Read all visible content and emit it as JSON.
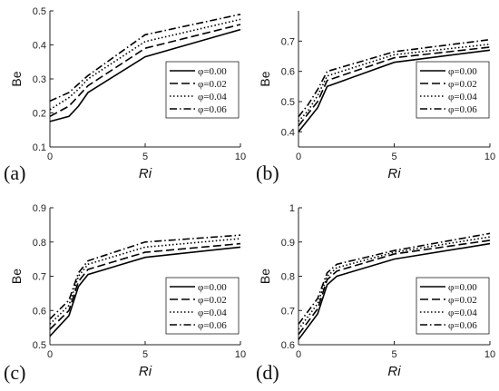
{
  "chart_data": [
    {
      "type": "line",
      "panel": "(a)",
      "xlabel": "Ri",
      "ylabel": "Be",
      "xlim": [
        0,
        10
      ],
      "ylim": [
        0.1,
        0.5
      ],
      "xticks": [
        0,
        5,
        10
      ],
      "yticks": [
        0.1,
        0.2,
        0.3,
        0.4,
        0.5
      ],
      "ytick_labels": [
        "0.1",
        "0.2",
        "0.3",
        "0.4",
        "0.5"
      ],
      "legend_position": "right",
      "series": [
        {
          "name": "φ=0.00",
          "dash": "solid",
          "x": [
            0,
            1,
            1.5,
            2,
            5,
            10
          ],
          "y": [
            0.175,
            0.19,
            0.22,
            0.26,
            0.365,
            0.445
          ]
        },
        {
          "name": "φ=0.02",
          "dash": "dash",
          "x": [
            0,
            1,
            1.5,
            2,
            5,
            10
          ],
          "y": [
            0.19,
            0.22,
            0.25,
            0.28,
            0.39,
            0.46
          ]
        },
        {
          "name": "φ=0.04",
          "dash": "dot",
          "x": [
            0,
            1,
            1.5,
            2,
            5,
            10
          ],
          "y": [
            0.21,
            0.245,
            0.27,
            0.3,
            0.41,
            0.475
          ]
        },
        {
          "name": "φ=0.06",
          "dash": "dashdot",
          "x": [
            0,
            1,
            1.5,
            2,
            5,
            10
          ],
          "y": [
            0.235,
            0.26,
            0.285,
            0.31,
            0.43,
            0.49
          ]
        }
      ]
    },
    {
      "type": "line",
      "panel": "(b)",
      "xlabel": "Ri",
      "ylabel": "Be",
      "xlim": [
        0,
        10
      ],
      "ylim": [
        0.35,
        0.8
      ],
      "xticks": [
        0,
        5,
        10
      ],
      "yticks": [
        0.4,
        0.5,
        0.6,
        0.7
      ],
      "ytick_labels": [
        "0.4",
        "0.5",
        "0.6",
        "0.7"
      ],
      "legend_position": "right",
      "series": [
        {
          "name": "φ=0.00",
          "dash": "solid",
          "x": [
            0,
            0.5,
            1,
            1.5,
            5,
            10
          ],
          "y": [
            0.4,
            0.44,
            0.48,
            0.55,
            0.63,
            0.67
          ]
        },
        {
          "name": "φ=0.02",
          "dash": "dash",
          "x": [
            0,
            0.5,
            1,
            1.5,
            5,
            10
          ],
          "y": [
            0.42,
            0.46,
            0.5,
            0.57,
            0.645,
            0.68
          ]
        },
        {
          "name": "φ=0.04",
          "dash": "dot",
          "x": [
            0,
            0.5,
            1,
            1.5,
            5,
            10
          ],
          "y": [
            0.435,
            0.47,
            0.52,
            0.585,
            0.655,
            0.69
          ]
        },
        {
          "name": "φ=0.06",
          "dash": "dashdot",
          "x": [
            0,
            0.5,
            1,
            1.5,
            5,
            10
          ],
          "y": [
            0.45,
            0.49,
            0.54,
            0.6,
            0.665,
            0.705
          ]
        }
      ]
    },
    {
      "type": "line",
      "panel": "(c)",
      "xlabel": "Ri",
      "ylabel": "Be",
      "xlim": [
        0,
        10
      ],
      "ylim": [
        0.5,
        0.9
      ],
      "xticks": [
        0,
        5,
        10
      ],
      "yticks": [
        0.5,
        0.6,
        0.7,
        0.8,
        0.9
      ],
      "ytick_labels": [
        "0.5",
        "0.6",
        "0.7",
        "0.8",
        "0.9"
      ],
      "legend_position": "right",
      "series": [
        {
          "name": "φ=0.00",
          "dash": "solid",
          "x": [
            0,
            1,
            1.5,
            2,
            5,
            10
          ],
          "y": [
            0.525,
            0.585,
            0.67,
            0.705,
            0.755,
            0.785
          ]
        },
        {
          "name": "φ=0.02",
          "dash": "dash",
          "x": [
            0,
            1,
            1.5,
            2,
            5,
            10
          ],
          "y": [
            0.545,
            0.6,
            0.685,
            0.72,
            0.77,
            0.795
          ]
        },
        {
          "name": "φ=0.04",
          "dash": "dot",
          "x": [
            0,
            1,
            1.5,
            2,
            5,
            10
          ],
          "y": [
            0.56,
            0.615,
            0.7,
            0.735,
            0.785,
            0.81
          ]
        },
        {
          "name": "φ=0.06",
          "dash": "dashdot",
          "x": [
            0,
            1,
            1.5,
            2,
            5,
            10
          ],
          "y": [
            0.575,
            0.63,
            0.71,
            0.745,
            0.8,
            0.82
          ]
        }
      ]
    },
    {
      "type": "line",
      "panel": "(d)",
      "xlabel": "Ri",
      "ylabel": "Be",
      "xlim": [
        0,
        10
      ],
      "ylim": [
        0.6,
        1.0
      ],
      "xticks": [
        0,
        5,
        10
      ],
      "yticks": [
        0.6,
        0.7,
        0.8,
        0.9,
        1.0
      ],
      "ytick_labels": [
        "0.6",
        "0.7",
        "0.8",
        "0.9",
        "1"
      ],
      "legend_position": "right",
      "series": [
        {
          "name": "φ=0.00",
          "dash": "solid",
          "x": [
            0,
            1,
            1.5,
            2,
            5,
            10
          ],
          "y": [
            0.615,
            0.69,
            0.775,
            0.8,
            0.85,
            0.895
          ]
        },
        {
          "name": "φ=0.02",
          "dash": "dash",
          "x": [
            0,
            1,
            1.5,
            2,
            5,
            10
          ],
          "y": [
            0.63,
            0.705,
            0.79,
            0.815,
            0.865,
            0.905
          ]
        },
        {
          "name": "φ=0.04",
          "dash": "dot",
          "x": [
            0,
            1,
            1.5,
            2,
            5,
            10
          ],
          "y": [
            0.645,
            0.72,
            0.8,
            0.825,
            0.87,
            0.915
          ]
        },
        {
          "name": "φ=0.06",
          "dash": "dashdot",
          "x": [
            0,
            1,
            1.5,
            2,
            5,
            10
          ],
          "y": [
            0.66,
            0.735,
            0.81,
            0.835,
            0.875,
            0.925
          ]
        }
      ]
    }
  ]
}
